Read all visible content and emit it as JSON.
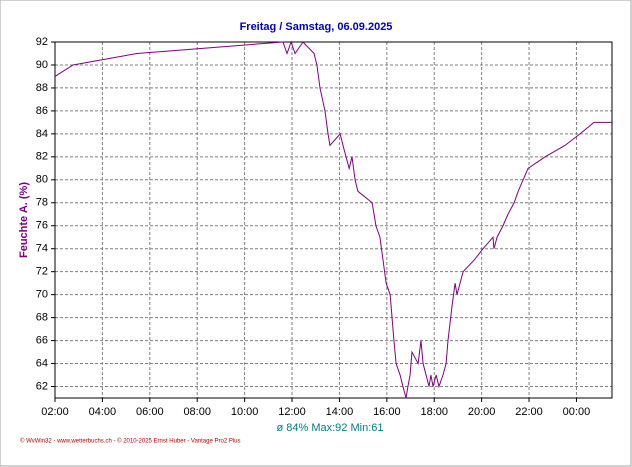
{
  "chart_data": {
    "type": "line",
    "title": "Freitag / Samstag, 06.09.2025",
    "y_label": "Feuchte A. (%)",
    "annotation": "ø 84%  Max:92  Min:61",
    "footer": "© WvWin32 - www.wetterbuchs.ch - © 2010-2025 Ernst Huber - Vantage Pro2 Plus",
    "color": "#800080",
    "grid": true,
    "x": [
      2.0,
      2.76,
      5.46,
      11.62,
      11.79,
      11.96,
      12.13,
      12.46,
      12.93,
      13.05,
      13.18,
      13.39,
      13.52,
      13.6,
      14.03,
      14.15,
      14.28,
      14.41,
      14.53,
      14.66,
      14.78,
      15.38,
      15.54,
      15.71,
      15.84,
      15.97,
      16.14,
      16.22,
      16.3,
      16.39,
      16.56,
      16.68,
      16.81,
      16.89,
      16.98,
      17.06,
      17.32,
      17.44,
      17.53,
      17.78,
      17.86,
      17.95,
      18.08,
      18.2,
      18.37,
      18.5,
      18.58,
      18.75,
      18.88,
      18.96,
      19.09,
      19.22,
      19.68,
      20.06,
      20.48,
      20.52,
      20.65,
      20.9,
      21.11,
      21.37,
      21.54,
      21.75,
      21.96,
      22.68,
      23.52,
      24.15,
      24.74,
      25.5
    ],
    "values": [
      89,
      90,
      91,
      92,
      91,
      92,
      91,
      92,
      91,
      90,
      88,
      86,
      84,
      83,
      84,
      83,
      82,
      81,
      82,
      80,
      79,
      78,
      76,
      75,
      73,
      71,
      70,
      68,
      66,
      64,
      63,
      62,
      61,
      62,
      63,
      65,
      64,
      66,
      64,
      62,
      63,
      62,
      63,
      62,
      63,
      64,
      66,
      69,
      71,
      70,
      71,
      72,
      73,
      74,
      75,
      74,
      75,
      76,
      77,
      78,
      79,
      80,
      81,
      82,
      83,
      84,
      85,
      85
    ],
    "xlim": [
      2,
      25.5
    ],
    "xticks": [
      {
        "value": 2,
        "label": "02:00"
      },
      {
        "value": 4,
        "label": "04:00"
      },
      {
        "value": 6,
        "label": "06:00"
      },
      {
        "value": 8,
        "label": "08:00"
      },
      {
        "value": 10,
        "label": "10:00"
      },
      {
        "value": 12,
        "label": "12:00"
      },
      {
        "value": 14,
        "label": "14:00"
      },
      {
        "value": 16,
        "label": "16:00"
      },
      {
        "value": 18,
        "label": "18:00"
      },
      {
        "value": 20,
        "label": "20:00"
      },
      {
        "value": 22,
        "label": "22:00"
      },
      {
        "value": 24,
        "label": "00:00"
      }
    ],
    "ylim": [
      61,
      92
    ],
    "yticks": [
      62,
      64,
      66,
      68,
      70,
      72,
      74,
      76,
      78,
      80,
      82,
      84,
      86,
      88,
      90,
      92
    ]
  }
}
